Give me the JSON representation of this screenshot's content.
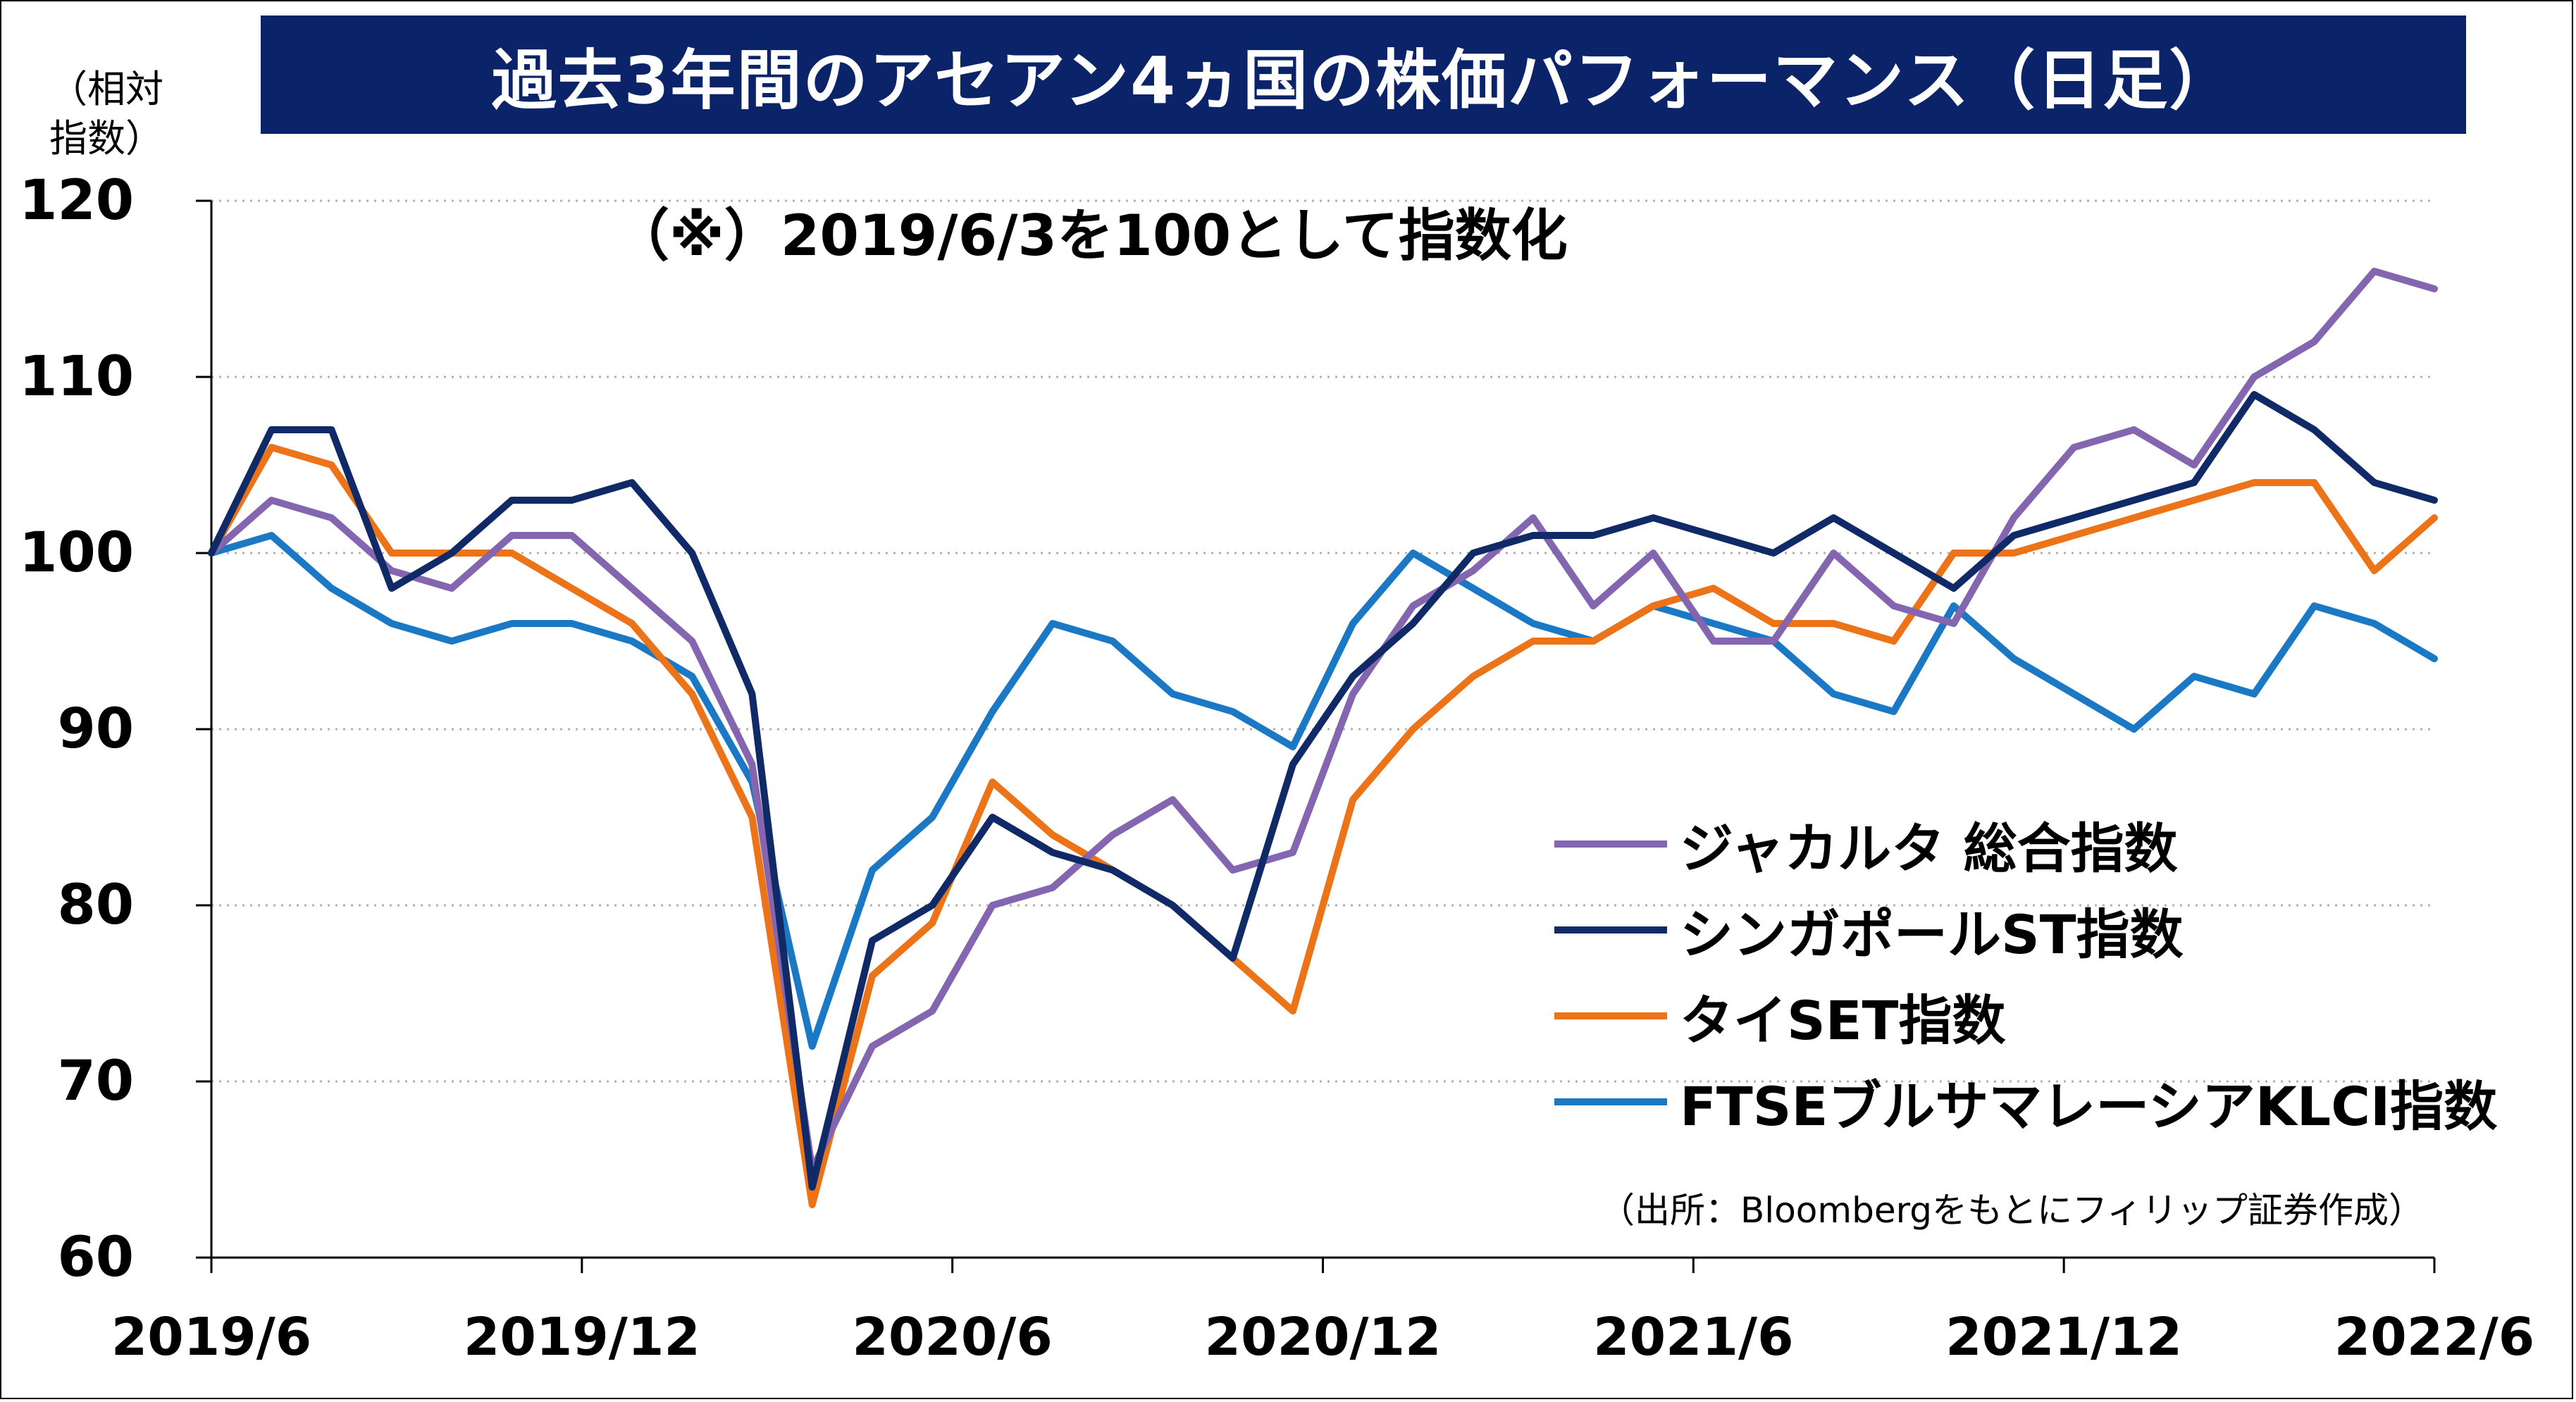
{
  "title": "過去3年間のアセアン4ヵ国の株価パフォーマンス（日足）",
  "ylabel_line1": "（相対",
  "ylabel_line2": "指数）",
  "note": "（※）2019/6/3を100として指数化",
  "source": "（出所：Bloombergをもとにフィリップ証券作成）",
  "colors": {
    "title_bg": "#0b2469",
    "jakarta": "#8466b0",
    "singapore": "#0f2a66",
    "thai": "#ec7318",
    "klci": "#1a78c4"
  },
  "chart_data": {
    "type": "line",
    "ylim": [
      60,
      120
    ],
    "yticks": [
      60,
      70,
      80,
      90,
      100,
      110,
      120
    ],
    "xticks": [
      "2019/6",
      "2019/12",
      "2020/6",
      "2020/12",
      "2021/6",
      "2021/12",
      "2022/6"
    ],
    "grid": "horizontal dotted",
    "legend_position": "right-middle",
    "x": [
      "2019/6",
      "2019/7",
      "2019/8",
      "2019/9",
      "2019/10",
      "2019/11",
      "2019/12",
      "2020/1",
      "2020/2",
      "2020/3a",
      "2020/3b",
      "2020/4",
      "2020/5",
      "2020/6",
      "2020/7",
      "2020/8",
      "2020/9",
      "2020/10",
      "2020/11",
      "2020/12",
      "2021/1",
      "2021/2",
      "2021/3",
      "2021/4",
      "2021/5",
      "2021/6",
      "2021/7",
      "2021/8",
      "2021/9",
      "2021/10",
      "2021/11",
      "2021/12",
      "2022/1",
      "2022/2",
      "2022/3",
      "2022/4",
      "2022/5",
      "2022/6"
    ],
    "series": [
      {
        "name": "ジャカルタ 総合指数",
        "color_key": "jakarta",
        "values": [
          100,
          103,
          102,
          99,
          98,
          101,
          101,
          98,
          95,
          88,
          65,
          72,
          74,
          80,
          81,
          84,
          86,
          82,
          83,
          92,
          97,
          99,
          102,
          97,
          100,
          95,
          95,
          100,
          97,
          96,
          102,
          106,
          107,
          105,
          110,
          112,
          116,
          115
        ]
      },
      {
        "name": "シンガポールST指数",
        "color_key": "singapore",
        "values": [
          100,
          107,
          107,
          98,
          100,
          103,
          103,
          104,
          100,
          92,
          64,
          78,
          80,
          85,
          83,
          82,
          80,
          77,
          88,
          93,
          96,
          100,
          101,
          101,
          102,
          101,
          100,
          102,
          100,
          98,
          101,
          102,
          103,
          104,
          109,
          107,
          104,
          103
        ]
      },
      {
        "name": "タイSET指数",
        "color_key": "thai",
        "values": [
          100,
          106,
          105,
          100,
          100,
          100,
          98,
          96,
          92,
          85,
          63,
          76,
          79,
          87,
          84,
          82,
          80,
          77,
          74,
          86,
          90,
          93,
          95,
          95,
          97,
          98,
          96,
          96,
          95,
          100,
          100,
          101,
          102,
          103,
          104,
          104,
          99,
          102
        ]
      },
      {
        "name": "FTSEブルサマレーシアKLCI指数",
        "color_key": "klci",
        "values": [
          100,
          101,
          98,
          96,
          95,
          96,
          96,
          95,
          93,
          87,
          72,
          82,
          85,
          91,
          96,
          95,
          92,
          91,
          89,
          96,
          100,
          98,
          96,
          95,
          97,
          96,
          95,
          92,
          91,
          97,
          94,
          92,
          90,
          93,
          92,
          97,
          96,
          94
        ]
      }
    ]
  }
}
